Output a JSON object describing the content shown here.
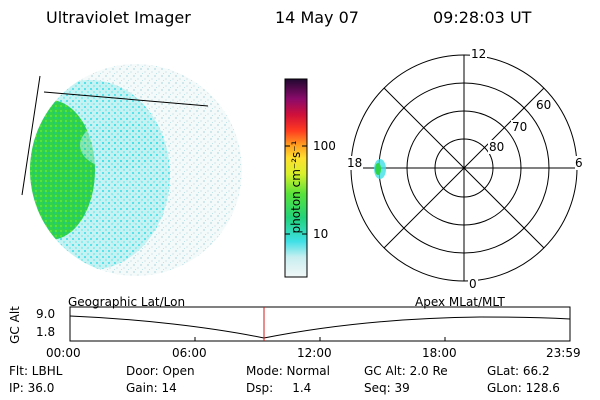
{
  "header": {
    "title": "Ultraviolet Imager",
    "date": "14 May 07",
    "time": "09:28:03 UT"
  },
  "colorbar": {
    "unit_label": "photon cm⁻²s⁻¹",
    "ticks": [
      "100",
      "10"
    ]
  },
  "polar": {
    "hour_labels": {
      "top": "12",
      "left": "18",
      "right": "6",
      "bottom": "0"
    },
    "lat_labels": [
      "60",
      "70",
      "80"
    ]
  },
  "timeline": {
    "left_title": "Geographic Lat/Lon",
    "right_title": "Apex MLat/MLT",
    "axis_name": "GC Alt",
    "y_max": "9.0",
    "y_min": "1.8",
    "x_ticks": [
      "00:00",
      "06:00",
      "12:00",
      "18:00",
      "23:59"
    ]
  },
  "info": {
    "row1": {
      "filter": "Flt: LBHL",
      "door": "Door: Open",
      "mode": "Mode: Normal",
      "gc_alt": "GC Alt: 2.0 Re",
      "glat": "GLat:  66.2"
    },
    "row2": {
      "ip": "IP: 36.0",
      "gain": "Gain: 14",
      "dsp": "Dsp:     1.4",
      "seq": "Seq: 39",
      "glon": "GLon: 128.6"
    }
  }
}
